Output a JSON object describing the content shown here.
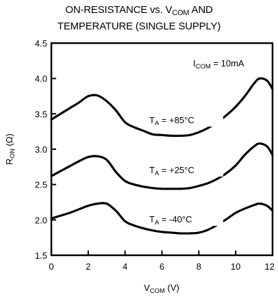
{
  "title": {
    "line1_pre": "ON-RESISTANCE vs. V",
    "line1_sub": "COM",
    "line1_post": " AND",
    "line2": "TEMPERATURE (SINGLE SUPPLY)"
  },
  "axes": {
    "xlabel_main": "V",
    "xlabel_sub": "COM",
    "xlabel_unit": " (V)",
    "ylabel_main": "R",
    "ylabel_sub": "ON",
    "ylabel_unit": " (Ω)"
  },
  "condition": {
    "main": "I",
    "sub": "COM",
    "value": " = 10mA"
  },
  "chart_data": {
    "type": "line",
    "xlim": [
      0,
      12
    ],
    "ylim": [
      1.5,
      4.5
    ],
    "xticks": [
      0,
      2,
      4,
      6,
      8,
      10,
      12
    ],
    "yticks": [
      1.5,
      2.0,
      2.5,
      3.0,
      3.5,
      4.0,
      4.5
    ],
    "ytick_labels": [
      "1.5",
      "2.0",
      "2.5",
      "3.0",
      "3.5",
      "4.0",
      "4.5"
    ],
    "grid": false,
    "series": [
      {
        "label_main": "T",
        "label_sub": "A",
        "label_value": " = +85°C",
        "x": [
          0,
          0.5,
          1.0,
          1.5,
          2.0,
          2.5,
          3.0,
          3.5,
          4.0,
          4.5,
          5.0,
          5.5,
          6.0,
          6.5,
          7.0,
          7.5,
          8.0,
          8.5,
          9.0,
          9.5,
          10.0,
          10.5,
          11.0,
          11.3,
          11.7,
          12.0
        ],
        "y": [
          3.42,
          3.5,
          3.58,
          3.66,
          3.75,
          3.76,
          3.68,
          3.55,
          3.38,
          3.31,
          3.26,
          3.21,
          3.2,
          3.19,
          3.19,
          3.2,
          3.24,
          3.3,
          3.38,
          3.48,
          3.6,
          3.75,
          3.93,
          4.0,
          3.97,
          3.85
        ]
      },
      {
        "label_main": "T",
        "label_sub": "A",
        "label_value": " = +25°C",
        "x": [
          0,
          0.5,
          1.0,
          1.5,
          2.0,
          2.5,
          3.0,
          3.5,
          4.0,
          4.5,
          5.0,
          5.5,
          6.0,
          6.5,
          7.0,
          7.5,
          8.0,
          8.5,
          9.0,
          9.5,
          10.0,
          10.5,
          11.0,
          11.3,
          11.7,
          12.0
        ],
        "y": [
          2.62,
          2.69,
          2.76,
          2.83,
          2.89,
          2.9,
          2.85,
          2.68,
          2.55,
          2.5,
          2.47,
          2.45,
          2.44,
          2.44,
          2.44,
          2.45,
          2.48,
          2.52,
          2.58,
          2.66,
          2.77,
          2.92,
          3.04,
          3.08,
          3.04,
          2.92
        ]
      },
      {
        "label_main": "T",
        "label_sub": "A",
        "label_value": " = -40°C",
        "x": [
          0,
          0.5,
          1.0,
          1.5,
          2.0,
          2.5,
          3.0,
          3.5,
          4.0,
          4.5,
          5.0,
          5.5,
          6.0,
          6.5,
          7.0,
          7.5,
          8.0,
          8.5,
          9.0,
          9.5,
          10.0,
          10.5,
          11.0,
          11.3,
          11.7,
          12.0
        ],
        "y": [
          2.02,
          2.06,
          2.1,
          2.15,
          2.2,
          2.23,
          2.23,
          2.13,
          1.98,
          1.92,
          1.88,
          1.85,
          1.83,
          1.82,
          1.81,
          1.81,
          1.82,
          1.86,
          1.93,
          2.01,
          2.1,
          2.16,
          2.21,
          2.23,
          2.2,
          2.13
        ]
      }
    ]
  }
}
